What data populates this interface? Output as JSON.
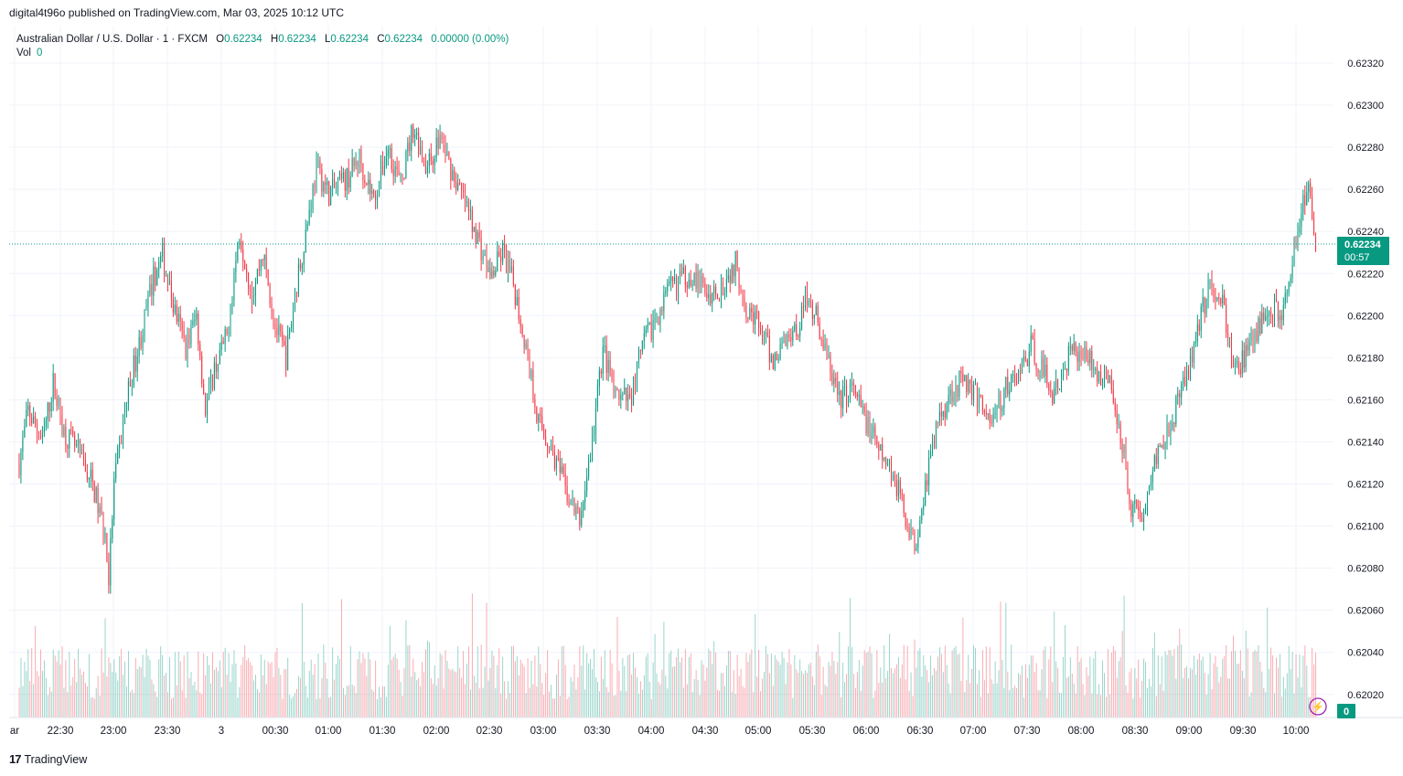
{
  "header": {
    "published": "digital4t96o published on TradingView.com, Mar 03, 2025 10:12 UTC"
  },
  "legend": {
    "symbol": "Australian Dollar / U.S. Dollar · 1 · FXCM",
    "o_label": "O",
    "o": "0.62234",
    "h_label": "H",
    "h": "0.62234",
    "l_label": "L",
    "l": "0.62234",
    "c_label": "C",
    "c": "0.62234",
    "change": "0.00000 (0.00%)",
    "vol_label": "Vol",
    "vol": "0"
  },
  "price_tag": {
    "price": "0.62234",
    "countdown": "00:57"
  },
  "volume_tag": "0",
  "footer": {
    "brand": "TradingView",
    "logo": "tv-logo-icon"
  },
  "colors": {
    "up": "#089981",
    "down": "#f23645",
    "grid": "#f0f3fa",
    "accent": "#089981"
  },
  "chart_data": {
    "type": "candlestick",
    "price_range": [
      0.6201,
      0.6233
    ],
    "y_ticks": [
      "0.62320",
      "0.62300",
      "0.62280",
      "0.62260",
      "0.62240",
      "0.62220",
      "0.62200",
      "0.62180",
      "0.62160",
      "0.62140",
      "0.62120",
      "0.62100",
      "0.62080",
      "0.62060",
      "0.62040",
      "0.62020"
    ],
    "x_ticks": [
      "ar",
      "22:30",
      "23:00",
      "23:30",
      "3",
      "00:30",
      "01:00",
      "01:30",
      "02:00",
      "02:30",
      "03:00",
      "03:30",
      "04:00",
      "04:30",
      "05:00",
      "05:30",
      "06:00",
      "06:30",
      "07:00",
      "07:30",
      "08:00",
      "08:30",
      "09:00",
      "09:30",
      "10:00"
    ],
    "last_price": 0.62234,
    "close_path": [
      [
        "22:07",
        0.6213
      ],
      [
        "22:12",
        0.62155
      ],
      [
        "22:20",
        0.6214
      ],
      [
        "22:26",
        0.62168
      ],
      [
        "22:32",
        0.62145
      ],
      [
        "22:40",
        0.62135
      ],
      [
        "22:48",
        0.6212
      ],
      [
        "22:55",
        0.62095
      ],
      [
        "22:57",
        0.62075
      ],
      [
        "23:00",
        0.6212
      ],
      [
        "23:08",
        0.62165
      ],
      [
        "23:15",
        0.6219
      ],
      [
        "23:22",
        0.62218
      ],
      [
        "23:27",
        0.62228
      ],
      [
        "23:33",
        0.62205
      ],
      [
        "23:40",
        0.62185
      ],
      [
        "23:46",
        0.622
      ],
      [
        "23:51",
        0.62155
      ],
      [
        "23:56",
        0.62175
      ],
      [
        "00:03",
        0.6219
      ],
      [
        "00:07",
        0.6222
      ],
      [
        "00:10",
        0.6224
      ],
      [
        "00:17",
        0.6221
      ],
      [
        "00:23",
        0.6223
      ],
      [
        "00:30",
        0.62195
      ],
      [
        "00:36",
        0.6218
      ],
      [
        "00:42",
        0.62215
      ],
      [
        "00:47",
        0.6224
      ],
      [
        "00:53",
        0.6227
      ],
      [
        "01:00",
        0.62258
      ],
      [
        "01:10",
        0.62265
      ],
      [
        "01:17",
        0.62275
      ],
      [
        "01:25",
        0.62255
      ],
      [
        "01:33",
        0.6228
      ],
      [
        "01:40",
        0.62262
      ],
      [
        "01:47",
        0.6229
      ],
      [
        "01:55",
        0.6227
      ],
      [
        "02:02",
        0.62285
      ],
      [
        "02:08",
        0.6227
      ],
      [
        "02:15",
        0.62255
      ],
      [
        "02:22",
        0.6224
      ],
      [
        "02:30",
        0.62218
      ],
      [
        "02:37",
        0.6223
      ],
      [
        "02:43",
        0.62215
      ],
      [
        "02:50",
        0.62185
      ],
      [
        "02:57",
        0.6215
      ],
      [
        "03:05",
        0.62135
      ],
      [
        "03:13",
        0.62115
      ],
      [
        "03:20",
        0.62102
      ],
      [
        "03:27",
        0.6214
      ],
      [
        "03:33",
        0.62185
      ],
      [
        "03:40",
        0.6216
      ],
      [
        "03:48",
        0.6216
      ],
      [
        "03:55",
        0.62185
      ],
      [
        "04:03",
        0.622
      ],
      [
        "04:12",
        0.62215
      ],
      [
        "04:22",
        0.6222
      ],
      [
        "04:32",
        0.6221
      ],
      [
        "04:40",
        0.62215
      ],
      [
        "04:47",
        0.62225
      ],
      [
        "04:53",
        0.62205
      ],
      [
        "05:00",
        0.62195
      ],
      [
        "05:08",
        0.62178
      ],
      [
        "05:15",
        0.6219
      ],
      [
        "05:22",
        0.62195
      ],
      [
        "05:27",
        0.6221
      ],
      [
        "05:32",
        0.622
      ],
      [
        "05:38",
        0.6218
      ],
      [
        "05:45",
        0.6216
      ],
      [
        "05:52",
        0.62165
      ],
      [
        "06:00",
        0.6215
      ],
      [
        "06:07",
        0.62135
      ],
      [
        "06:15",
        0.62125
      ],
      [
        "06:22",
        0.62105
      ],
      [
        "06:27",
        0.6209
      ],
      [
        "06:33",
        0.6212
      ],
      [
        "06:40",
        0.6215
      ],
      [
        "06:48",
        0.62165
      ],
      [
        "06:55",
        0.6217
      ],
      [
        "07:03",
        0.6216
      ],
      [
        "07:10",
        0.6215
      ],
      [
        "07:18",
        0.62165
      ],
      [
        "07:25",
        0.62172
      ],
      [
        "07:32",
        0.62185
      ],
      [
        "07:38",
        0.62175
      ],
      [
        "07:45",
        0.62162
      ],
      [
        "07:53",
        0.6218
      ],
      [
        "08:00",
        0.62185
      ],
      [
        "08:08",
        0.62175
      ],
      [
        "08:15",
        0.6217
      ],
      [
        "08:22",
        0.62145
      ],
      [
        "08:28",
        0.6211
      ],
      [
        "08:35",
        0.62105
      ],
      [
        "08:42",
        0.62135
      ],
      [
        "08:50",
        0.6215
      ],
      [
        "08:57",
        0.62165
      ],
      [
        "09:05",
        0.62195
      ],
      [
        "09:12",
        0.62215
      ],
      [
        "09:18",
        0.6221
      ],
      [
        "09:25",
        0.62175
      ],
      [
        "09:32",
        0.6218
      ],
      [
        "09:38",
        0.62192
      ],
      [
        "09:45",
        0.62205
      ],
      [
        "09:52",
        0.622
      ],
      [
        "09:58",
        0.62228
      ],
      [
        "10:03",
        0.6225
      ],
      [
        "10:08",
        0.6226
      ],
      [
        "10:11",
        0.62234
      ]
    ]
  },
  "volume_data": {
    "max": 190
  }
}
